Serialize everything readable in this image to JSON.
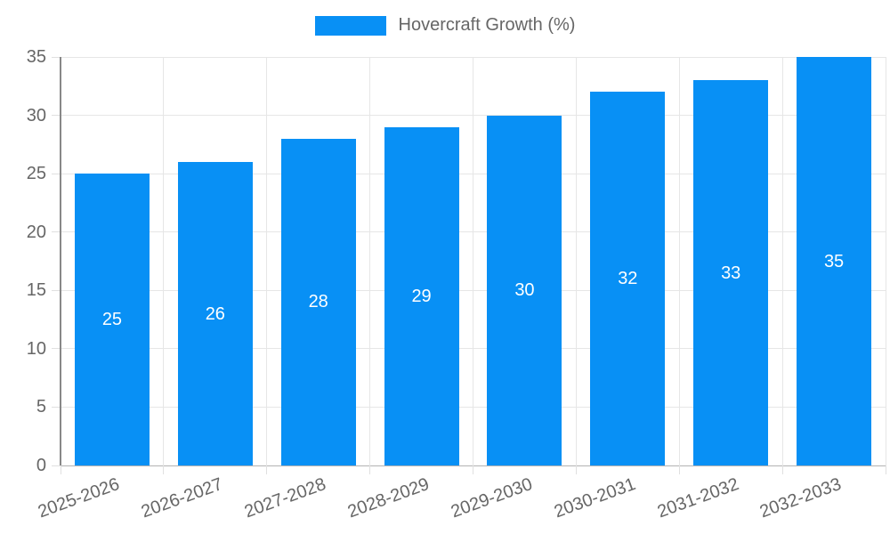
{
  "chart_data": {
    "type": "bar",
    "title": "",
    "xlabel": "",
    "ylabel": "",
    "legend": {
      "label": "Hovercraft Growth (%)",
      "position": "top"
    },
    "categories": [
      "2025-2026",
      "2026-2027",
      "2027-2028",
      "2028-2029",
      "2029-2030",
      "2030-2031",
      "2031-2032",
      "2032-2033"
    ],
    "values": [
      25,
      26,
      28,
      29,
      30,
      32,
      33,
      35
    ],
    "bar_value_labels": [
      "25",
      "26",
      "28",
      "29",
      "30",
      "32",
      "33",
      "35"
    ],
    "ylim": [
      0,
      35
    ],
    "y_tick_step": 5,
    "y_tick_labels": [
      "0",
      "5",
      "10",
      "15",
      "20",
      "25",
      "30",
      "35"
    ],
    "grid": true,
    "colors": {
      "bar": "#0890f5",
      "gridline": "#e6e6e6",
      "y_axis_border": "#888888",
      "x_axis_border": "#b3b3b3",
      "tick_mark": "#e0e0e0",
      "axis_text": "#666666",
      "bar_value_text": "#ffffff"
    }
  }
}
